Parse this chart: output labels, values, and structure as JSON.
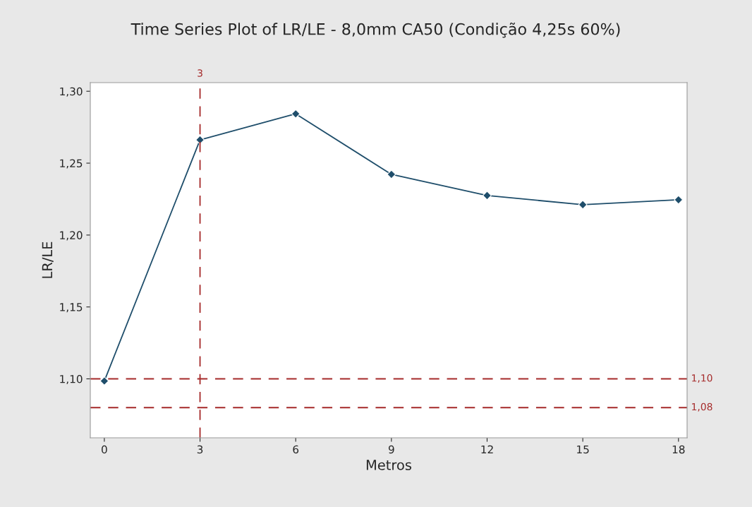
{
  "chart_data": {
    "type": "line",
    "title": "Time Series Plot of LR/LE - 8,0mm CA50 (Condição 4,25s 60%)",
    "xlabel": "Metros",
    "ylabel": "LR/LE",
    "x": [
      0,
      3,
      6,
      9,
      12,
      15,
      18
    ],
    "series": [
      {
        "color": "#1f4e6b",
        "values": [
          1.0985,
          1.2662,
          1.2843,
          1.2422,
          1.2275,
          1.2211,
          1.2245
        ]
      }
    ],
    "xlim": [
      -0.44,
      18.27
    ],
    "xticks": [
      0,
      3,
      6,
      9,
      12,
      15,
      18
    ],
    "ylim": [
      1.059,
      1.306
    ],
    "yticks": [
      {
        "value": 1.1,
        "label": "1,10"
      },
      {
        "value": 1.15,
        "label": "1,15"
      },
      {
        "value": 1.2,
        "label": "1,20"
      },
      {
        "value": 1.25,
        "label": "1,25"
      },
      {
        "value": 1.3,
        "label": "1,30"
      }
    ],
    "ref_lines": [
      {
        "axis": "x",
        "value": 3,
        "label": "3",
        "color": "#a52a2a",
        "line_style": "dashed"
      },
      {
        "axis": "y",
        "value": 1.1,
        "label": "1,10",
        "color": "#a52a2a",
        "line_style": "dashed"
      },
      {
        "axis": "y",
        "value": 1.08,
        "label": "1,08",
        "color": "#a52a2a",
        "line_style": "dashed"
      }
    ],
    "marker": "diamond",
    "line_style": "solid",
    "grid": false,
    "legend": false
  }
}
